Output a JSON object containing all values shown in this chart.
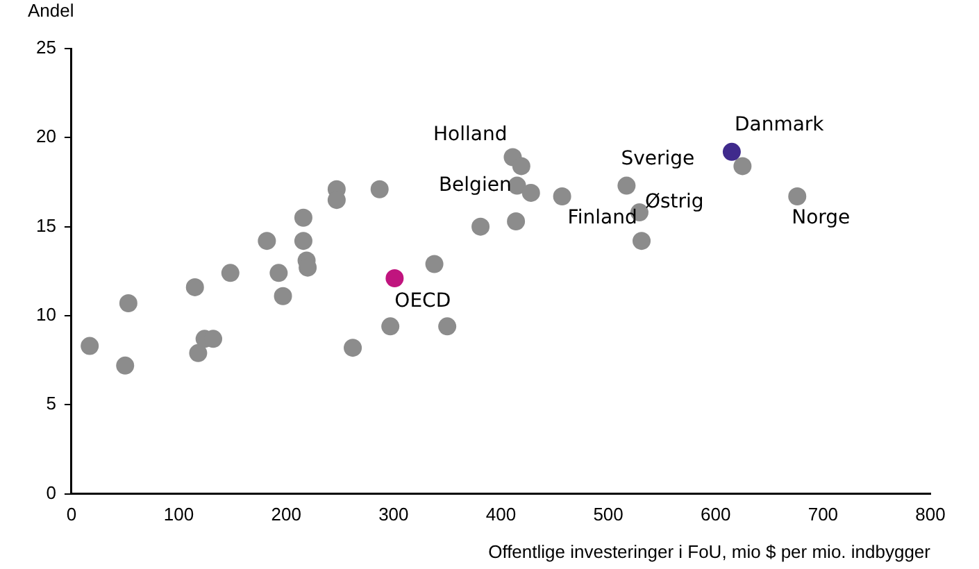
{
  "chart_data": {
    "type": "scatter",
    "xlabel": "Offentlige investeringer i FoU, mio $ per mio. indbygger",
    "ylabel": "Andel",
    "x": [
      17,
      50,
      53,
      115,
      118,
      124,
      132,
      148,
      182,
      193,
      197,
      216,
      216,
      219,
      220,
      247,
      247,
      262,
      287,
      297,
      338,
      350,
      381,
      411,
      419,
      415,
      428,
      414,
      457,
      517,
      529,
      531,
      625,
      676,
      301,
      615
    ],
    "series": [
      {
        "values": [
          8.3,
          7.2,
          10.7,
          11.6,
          7.9,
          8.7,
          8.7,
          12.4,
          14.2,
          12.4,
          11.1,
          15.5,
          14.2,
          13.1,
          12.7,
          17.1,
          16.5,
          8.2,
          17.1,
          9.4,
          12.9,
          9.4,
          15.0,
          18.9,
          18.4,
          17.3,
          16.9,
          15.3,
          16.7,
          17.3,
          15.8,
          14.2,
          18.4,
          16.7,
          12.1,
          19.2
        ],
        "colors": [
          "#8c8c8c",
          "#8c8c8c",
          "#8c8c8c",
          "#8c8c8c",
          "#8c8c8c",
          "#8c8c8c",
          "#8c8c8c",
          "#8c8c8c",
          "#8c8c8c",
          "#8c8c8c",
          "#8c8c8c",
          "#8c8c8c",
          "#8c8c8c",
          "#8c8c8c",
          "#8c8c8c",
          "#8c8c8c",
          "#8c8c8c",
          "#8c8c8c",
          "#8c8c8c",
          "#8c8c8c",
          "#8c8c8c",
          "#8c8c8c",
          "#8c8c8c",
          "#8c8c8c",
          "#8c8c8c",
          "#8c8c8c",
          "#8c8c8c",
          "#8c8c8c",
          "#8c8c8c",
          "#8c8c8c",
          "#8c8c8c",
          "#8c8c8c",
          "#8c8c8c",
          "#8c8c8c",
          "#c0147e",
          "#3f2a8c"
        ]
      }
    ],
    "xlim": [
      0,
      800
    ],
    "xticks": [
      0,
      100,
      200,
      300,
      400,
      500,
      600,
      700,
      800
    ],
    "ylim": [
      0,
      25
    ],
    "yticks": [
      0,
      5,
      10,
      15,
      20,
      25
    ],
    "grid": false,
    "legend": false,
    "marker": "circle",
    "annotations": [
      {
        "text": "Holland",
        "x": 411,
        "y": 18.9
      },
      {
        "text": "Belgien",
        "x": 415,
        "y": 17.3
      },
      {
        "text": "Finland",
        "x": 457,
        "y": 16.7
      },
      {
        "text": "Sverige",
        "x": 517,
        "y": 17.3
      },
      {
        "text": "Østrig",
        "x": 529,
        "y": 15.8
      },
      {
        "text": "Danmark",
        "x": 615,
        "y": 19.2
      },
      {
        "text": "Norge",
        "x": 676,
        "y": 16.7
      },
      {
        "text": "OECD",
        "x": 301,
        "y": 12.1
      }
    ]
  }
}
